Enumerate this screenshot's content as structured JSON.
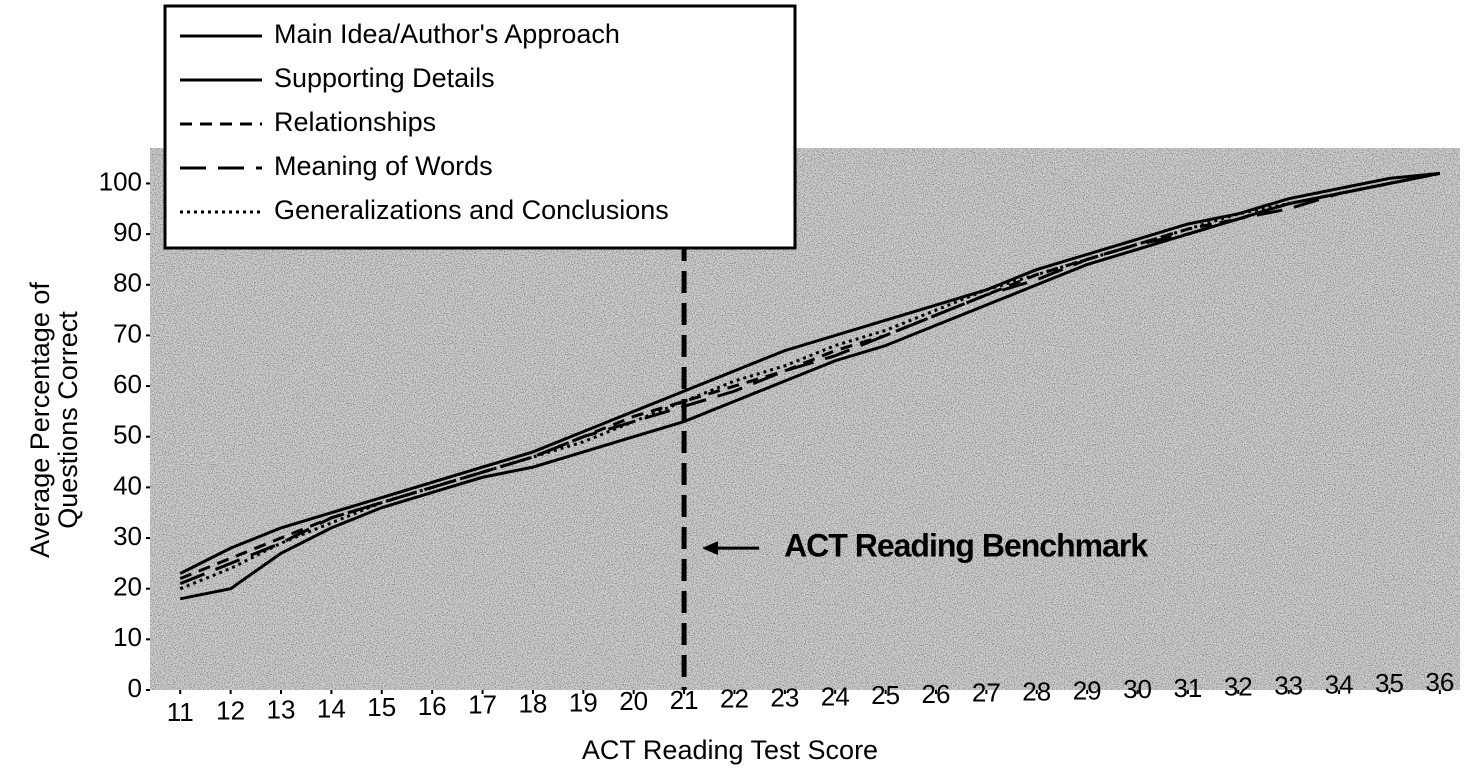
{
  "chart_data": {
    "type": "line",
    "xlabel": "ACT Reading Test Score",
    "ylabel": [
      "Average Percentage of",
      "Questions Correct"
    ],
    "x": [
      11,
      12,
      13,
      14,
      15,
      16,
      17,
      18,
      19,
      20,
      21,
      22,
      23,
      24,
      25,
      26,
      27,
      28,
      29,
      30,
      31,
      32,
      33,
      34,
      35,
      36
    ],
    "series": [
      {
        "name": "Main Idea/Author's Approach",
        "color": "#000000",
        "dash": "solid",
        "values": [
          23,
          28,
          32,
          35,
          38,
          41,
          44,
          47,
          51,
          55,
          59,
          63,
          67,
          70,
          73,
          76,
          79,
          83,
          86,
          89,
          92,
          94,
          97,
          99,
          101,
          102
        ]
      },
      {
        "name": "Supporting Details",
        "color": "#000000",
        "dash": "solid",
        "values": [
          18,
          20,
          27,
          32,
          36,
          39,
          42,
          44,
          47,
          50,
          53,
          57,
          61,
          65,
          68,
          72,
          76,
          80,
          84,
          87,
          90,
          93,
          96,
          98,
          100,
          102
        ]
      },
      {
        "name": "Relationships",
        "color": "#000000",
        "dash": "dashed",
        "values": [
          22,
          26,
          30,
          34,
          37,
          40,
          43,
          46,
          50,
          54,
          57,
          60,
          63,
          67,
          70,
          74,
          78,
          82,
          85,
          88,
          91,
          93,
          96,
          98,
          100,
          102
        ]
      },
      {
        "name": "Meaning of Words",
        "color": "#000000",
        "dash": "longdash",
        "values": [
          21,
          25,
          29,
          34,
          37,
          40,
          43,
          46,
          50,
          53,
          56,
          59,
          63,
          66,
          70,
          74,
          78,
          81,
          85,
          88,
          90,
          93,
          95,
          98,
          100,
          102
        ]
      },
      {
        "name": "Generalizations and Conclusions",
        "color": "#000000",
        "dash": "dotted",
        "values": [
          20,
          24,
          29,
          33,
          37,
          40,
          43,
          46,
          49,
          53,
          57,
          61,
          64,
          68,
          71,
          75,
          79,
          82,
          85,
          88,
          91,
          94,
          96,
          98,
          100,
          102
        ]
      }
    ],
    "xlim": [
      10.4,
      36.4
    ],
    "ylim": [
      0,
      107
    ],
    "xticks": [
      11,
      12,
      13,
      14,
      15,
      16,
      17,
      18,
      19,
      20,
      21,
      22,
      23,
      24,
      25,
      26,
      27,
      28,
      29,
      30,
      31,
      32,
      33,
      34,
      35,
      36
    ],
    "yticks": [
      0,
      10,
      20,
      30,
      40,
      50,
      60,
      70,
      80,
      90,
      100
    ],
    "annotations": [
      {
        "text": "ACT Reading Benchmark",
        "x": 21,
        "y": 28
      }
    ],
    "legend": "upper left"
  }
}
